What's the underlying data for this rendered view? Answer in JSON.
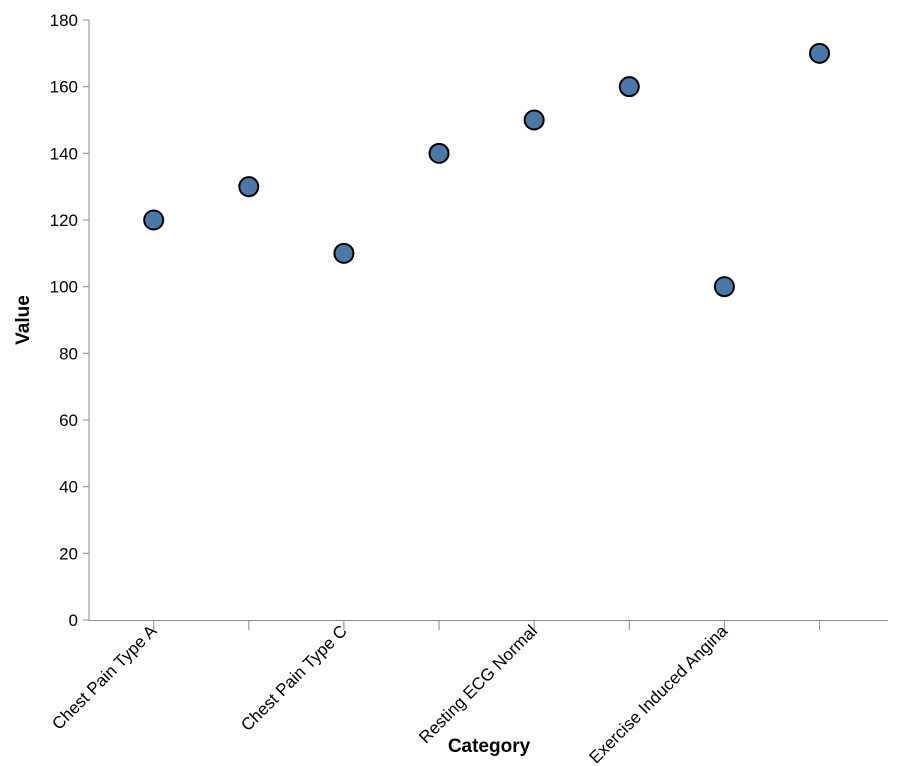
{
  "chart_data": {
    "type": "scatter",
    "xlabel": "Category",
    "ylabel": "Value",
    "ylim": [
      0,
      180
    ],
    "yticks": [
      0,
      20,
      40,
      60,
      80,
      100,
      120,
      140,
      160,
      180
    ],
    "x_tick_labels": [
      "Chest Pain Type A",
      "Chest Pain Type C",
      "Resting ECG Normal",
      "Exercise Induced Angina"
    ],
    "points": [
      {
        "index": 0,
        "value": 120
      },
      {
        "index": 1,
        "value": 130
      },
      {
        "index": 2,
        "value": 110
      },
      {
        "index": 3,
        "value": 140
      },
      {
        "index": 4,
        "value": 150
      },
      {
        "index": 5,
        "value": 160
      },
      {
        "index": 6,
        "value": 100
      },
      {
        "index": 7,
        "value": 170
      }
    ],
    "point_color": "#4c78a8",
    "grid": false,
    "legend": "none"
  }
}
